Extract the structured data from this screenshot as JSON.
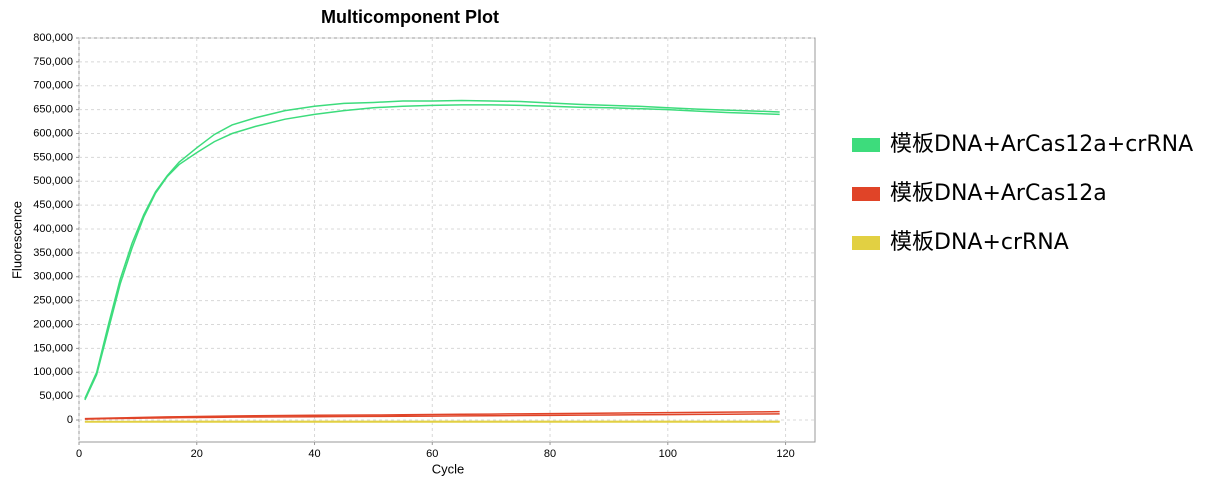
{
  "chart_data": {
    "type": "line",
    "title": "Multicomponent Plot",
    "x_label": "Cycle",
    "y_label": "Fluorescence",
    "x": [
      1,
      3,
      5,
      7,
      9,
      11,
      13,
      15,
      17,
      20,
      23,
      26,
      30,
      35,
      40,
      45,
      50,
      55,
      60,
      65,
      70,
      75,
      80,
      85,
      90,
      95,
      100,
      105,
      110,
      115,
      119
    ],
    "series": [
      {
        "name": "模板DNA+ArCas12a+crRNA",
        "color": "#3ddc7c",
        "lines": [
          [
            45000,
            100000,
            200000,
            295000,
            370000,
            430000,
            478000,
            512000,
            540000,
            570000,
            598000,
            618000,
            633000,
            648000,
            657000,
            663000,
            665000,
            668000,
            668000,
            669000,
            668000,
            667000,
            664000,
            661000,
            659000,
            657000,
            654000,
            651000,
            649000,
            647000,
            645000
          ],
          [
            42000,
            95000,
            190000,
            285000,
            360000,
            425000,
            475000,
            510000,
            535000,
            560000,
            583000,
            600000,
            615000,
            630000,
            640000,
            648000,
            654000,
            657000,
            659000,
            660000,
            660000,
            659000,
            657000,
            655000,
            654000,
            652000,
            650000,
            647000,
            644000,
            642000,
            640000
          ]
        ]
      },
      {
        "name": "模板DNA+ArCas12a",
        "color": "#e04428",
        "lines": [
          [
            3000,
            3500,
            4000,
            4500,
            5000,
            5500,
            6000,
            6500,
            7000,
            7500,
            8000,
            8500,
            9000,
            9500,
            10000,
            10200,
            10500,
            11000,
            11500,
            12000,
            12500,
            13000,
            13500,
            14000,
            14500,
            15000,
            15500,
            16000,
            16500,
            17000,
            17500
          ],
          [
            2000,
            2500,
            3000,
            3300,
            3600,
            4000,
            4300,
            4600,
            5000,
            5300,
            5600,
            6000,
            6300,
            6600,
            7000,
            7300,
            7600,
            8000,
            8300,
            8600,
            9000,
            9400,
            9800,
            10200,
            10600,
            11000,
            11400,
            11800,
            12200,
            12600,
            13000
          ]
        ]
      },
      {
        "name": "模板DNA+crRNA",
        "color": "#e2d042",
        "lines": [
          [
            -3000,
            -3000,
            -3000,
            -3000,
            -3000,
            -3000,
            -2800,
            -2800,
            -2800,
            -2800,
            -2800,
            -2800,
            -2800,
            -2800,
            -2800,
            -2800,
            -2800,
            -2800,
            -2800,
            -2800,
            -2800,
            -2800,
            -2800,
            -2800,
            -2800,
            -2800,
            -2800,
            -2800,
            -2800,
            -2800,
            -2800
          ],
          [
            -4000,
            -4000,
            -4000,
            -4000,
            -4000,
            -4000,
            -4000,
            -4000,
            -4000,
            -4000,
            -4000,
            -4000,
            -4000,
            -4000,
            -4000,
            -4000,
            -4000,
            -4000,
            -4000,
            -4000,
            -4000,
            -4000,
            -4000,
            -4000,
            -4000,
            -4000,
            -4000,
            -4000,
            -4000,
            -4000,
            -4000
          ]
        ]
      }
    ],
    "xlim": [
      0,
      125
    ],
    "ylim": [
      -46000,
      800000
    ],
    "xticks": [
      0,
      20,
      40,
      60,
      80,
      100,
      120
    ],
    "yticks": [
      0,
      {
        "value": 50000,
        "label": "50,000"
      },
      {
        "value": 100000,
        "label": "100,000"
      },
      {
        "value": 150000,
        "label": "150,000"
      },
      {
        "value": 200000,
        "label": "200,000"
      },
      {
        "value": 250000,
        "label": "250,000"
      },
      {
        "value": 300000,
        "label": "300,000"
      },
      {
        "value": 350000,
        "label": "350,000"
      },
      {
        "value": 400000,
        "label": "400,000"
      },
      {
        "value": 450000,
        "label": "450,000"
      },
      {
        "value": 500000,
        "label": "500,000"
      },
      {
        "value": 550000,
        "label": "550,000"
      },
      {
        "value": 600000,
        "label": "600,000"
      },
      {
        "value": 650000,
        "label": "650,000"
      },
      {
        "value": 700000,
        "label": "700,000"
      },
      {
        "value": 750000,
        "label": "750,000"
      },
      {
        "value": 800000,
        "label": "800,000"
      }
    ],
    "grid": true,
    "legend": "right"
  }
}
